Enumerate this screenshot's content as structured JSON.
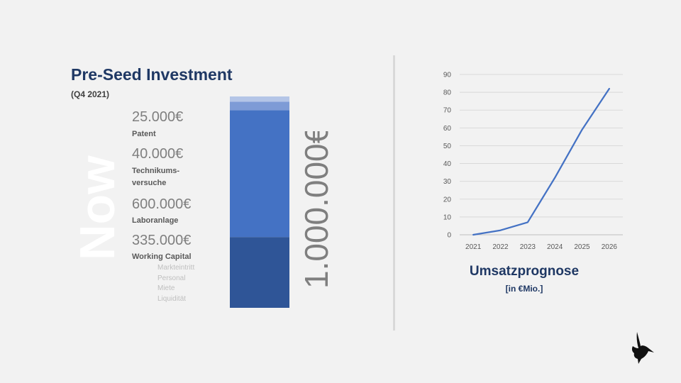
{
  "header": {
    "title": "Pre-Seed Investment",
    "subtitle": "(Q4 2021)"
  },
  "now_label": "Now",
  "items": [
    {
      "amount": "25.000€",
      "label": "Patent"
    },
    {
      "amount": "40.000€",
      "label_line1": "Technikums-",
      "label_line2": "versuche"
    },
    {
      "amount": "600.000€",
      "label": "Laboranlage"
    },
    {
      "amount": "335.000€",
      "label": "Working Capital"
    }
  ],
  "working_capital_details": [
    "Markteintritt",
    "Personal",
    "Miete",
    "Liquidität"
  ],
  "total_label": "1.000.000€",
  "stacked_bar": {
    "segments": [
      {
        "name": "Working Capital",
        "value": 335000,
        "color": "#2f5597"
      },
      {
        "name": "Laboranlage",
        "value": 600000,
        "color": "#4472c4"
      },
      {
        "name": "Technikumsversuche",
        "value": 40000,
        "color": "#7e9bd6"
      },
      {
        "name": "Patent",
        "value": 25000,
        "color": "#b4c5e7"
      }
    ],
    "total": 1000000
  },
  "chart_data": {
    "type": "line",
    "title": "Umsatzprognose",
    "subtitle": "[in €Mio.]",
    "xlabel": "",
    "ylabel": "",
    "x": [
      "2021",
      "2022",
      "2023",
      "2024",
      "2025",
      "2026"
    ],
    "series": [
      {
        "values": [
          0,
          2.5,
          7,
          32,
          59,
          82
        ],
        "color": "#4472c4"
      }
    ],
    "ylim": [
      0,
      90
    ],
    "yticks": [
      0,
      10,
      20,
      30,
      40,
      50,
      60,
      70,
      80,
      90
    ],
    "grid": true,
    "legend": "none"
  },
  "colors": {
    "accent": "#1f3864",
    "line": "#4472c4"
  }
}
